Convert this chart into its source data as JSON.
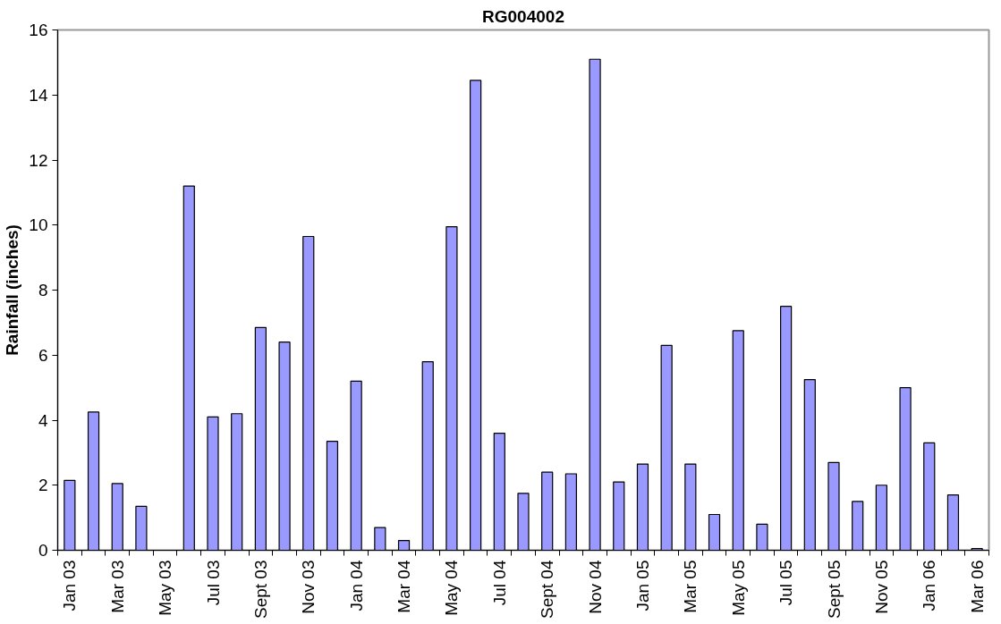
{
  "chart_data": {
    "type": "bar",
    "title": "RG004002",
    "ylabel": "Rainfall (inches)",
    "categories": [
      "Jan 03",
      null,
      "Mar 03",
      null,
      "May 03",
      null,
      "Jul 03",
      null,
      "Sept 03",
      null,
      "Nov 03",
      null,
      "Jan 04",
      null,
      "Mar 04",
      null,
      "May 04",
      null,
      "Jul 04",
      null,
      "Sept 04",
      null,
      "Nov 04",
      null,
      "Jan 05",
      null,
      "Mar 05",
      null,
      "May 05",
      null,
      "Jul 05",
      null,
      "Sept 05",
      null,
      "Nov 05",
      null,
      "Jan 06",
      null,
      "Mar 06"
    ],
    "values": [
      2.15,
      4.25,
      2.05,
      1.35,
      0,
      11.2,
      4.1,
      4.2,
      6.85,
      6.4,
      9.65,
      3.35,
      5.2,
      0.7,
      0.3,
      5.8,
      9.95,
      14.45,
      3.6,
      1.75,
      2.4,
      2.35,
      15.1,
      2.1,
      2.65,
      6.3,
      2.65,
      1.1,
      6.75,
      0.8,
      7.5,
      5.25,
      2.7,
      1.5,
      2.0,
      5.0,
      3.3,
      1.7,
      0.05
    ],
    "color": "#9999ff",
    "ylim": [
      0,
      16
    ],
    "yticks": [
      0,
      2,
      4,
      6,
      8,
      10,
      12,
      14,
      16
    ],
    "grid": false
  }
}
